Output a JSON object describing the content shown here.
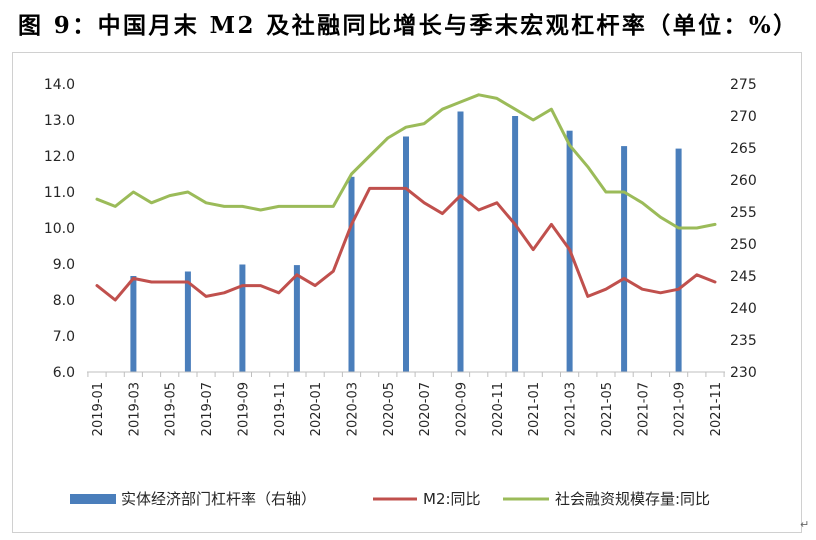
{
  "title": "图 9：中国月末 M2 及社融同比增长与季末宏观杠杆率（单位：%）",
  "return_mark": "↵",
  "chart_data": {
    "type": "bar+line",
    "x": [
      "2019-01",
      "2019-02",
      "2019-03",
      "2019-04",
      "2019-05",
      "2019-06",
      "2019-07",
      "2019-08",
      "2019-09",
      "2019-10",
      "2019-11",
      "2019-12",
      "2020-01",
      "2020-02",
      "2020-03",
      "2020-04",
      "2020-05",
      "2020-06",
      "2020-07",
      "2020-08",
      "2020-09",
      "2020-10",
      "2020-11",
      "2020-12",
      "2021-01",
      "2021-02",
      "2021-03",
      "2021-04",
      "2021-05",
      "2021-06",
      "2021-07",
      "2021-08",
      "2021-09",
      "2021-10",
      "2021-11"
    ],
    "xtick_labels": [
      "2019-01",
      "2019-03",
      "2019-05",
      "2019-07",
      "2019-09",
      "2019-11",
      "2020-01",
      "2020-03",
      "2020-05",
      "2020-07",
      "2020-09",
      "2020-11",
      "2021-01",
      "2021-03",
      "2021-05",
      "2021-07",
      "2021-09",
      "2021-11"
    ],
    "y_left": {
      "ylim": [
        6.0,
        14.0
      ],
      "ticks": [
        "6.0",
        "7.0",
        "8.0",
        "9.0",
        "10.0",
        "11.0",
        "12.0",
        "13.0",
        "14.0"
      ]
    },
    "y_right": {
      "ylim": [
        230,
        275
      ],
      "ticks": [
        "230",
        "235",
        "240",
        "245",
        "250",
        "255",
        "260",
        "265",
        "270",
        "275"
      ]
    },
    "grid": false,
    "legend": "bottom",
    "series": [
      {
        "name": "实体经济部门杠杆率（右轴）",
        "type": "bar",
        "axis": "right",
        "color": "#4a7ebb",
        "points": [
          {
            "x": "2019-03",
            "y": 245.0
          },
          {
            "x": "2019-06",
            "y": 245.7
          },
          {
            "x": "2019-09",
            "y": 246.8
          },
          {
            "x": "2019-12",
            "y": 246.7
          },
          {
            "x": "2020-03",
            "y": 260.5
          },
          {
            "x": "2020-06",
            "y": 266.8
          },
          {
            "x": "2020-09",
            "y": 270.7
          },
          {
            "x": "2020-12",
            "y": 270.0
          },
          {
            "x": "2021-03",
            "y": 267.7
          },
          {
            "x": "2021-06",
            "y": 265.3
          },
          {
            "x": "2021-09",
            "y": 264.9
          }
        ]
      },
      {
        "name": "M2:同比",
        "type": "line",
        "axis": "left",
        "color": "#c0504d",
        "values": [
          8.4,
          8.0,
          8.6,
          8.5,
          8.5,
          8.5,
          8.1,
          8.2,
          8.4,
          8.4,
          8.2,
          8.7,
          8.4,
          8.8,
          10.1,
          11.1,
          11.1,
          11.1,
          10.7,
          10.4,
          10.9,
          10.5,
          10.7,
          10.1,
          9.4,
          10.1,
          9.4,
          8.1,
          8.3,
          8.6,
          8.3,
          8.2,
          8.3,
          8.7,
          8.5
        ]
      },
      {
        "name": "社会融资规模存量:同比",
        "type": "line",
        "axis": "left",
        "color": "#9bbb59",
        "values": [
          10.8,
          10.6,
          11.0,
          10.7,
          10.9,
          11.0,
          10.7,
          10.6,
          10.6,
          10.5,
          10.6,
          10.6,
          10.6,
          10.6,
          11.5,
          12.0,
          12.5,
          12.8,
          12.9,
          13.3,
          13.5,
          13.7,
          13.6,
          13.3,
          13.0,
          13.3,
          12.3,
          11.7,
          11.0,
          11.0,
          10.7,
          10.3,
          10.0,
          10.0,
          10.1
        ]
      }
    ]
  }
}
